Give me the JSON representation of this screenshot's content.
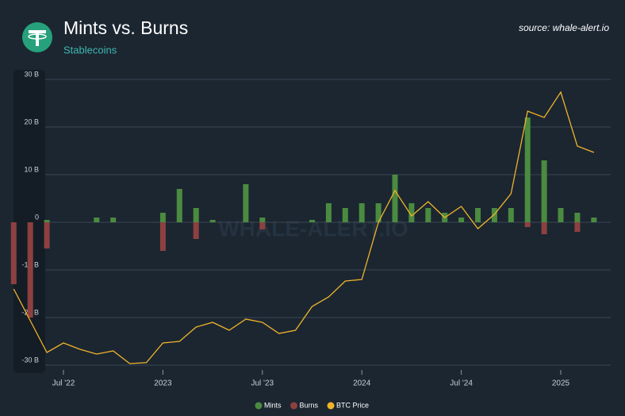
{
  "chart_data": {
    "type": "bar",
    "title": "Mints vs. Burns",
    "subtitle": "Stablecoins",
    "source": "source: whale-alert.io",
    "watermark": "WHALE-ALERT.IO",
    "x": [
      "2022-04",
      "2022-05",
      "2022-06",
      "2022-07",
      "2022-08",
      "2022-09",
      "2022-10",
      "2022-11",
      "2022-12",
      "2023-01",
      "2023-02",
      "2023-03",
      "2023-04",
      "2023-05",
      "2023-06",
      "2023-07",
      "2023-08",
      "2023-09",
      "2023-10",
      "2023-11",
      "2023-12",
      "2024-01",
      "2024-02",
      "2024-03",
      "2024-04",
      "2024-05",
      "2024-06",
      "2024-07",
      "2024-08",
      "2024-09",
      "2024-10",
      "2024-11",
      "2024-12",
      "2025-01",
      "2025-02",
      "2025-03"
    ],
    "series": [
      {
        "name": "Mints",
        "type": "bar",
        "color": "#4b8b3f",
        "values": [
          0,
          0,
          0.5,
          0,
          0,
          1,
          1,
          0,
          0,
          2,
          7,
          3,
          0.5,
          0,
          8,
          1,
          0,
          0,
          0.5,
          4,
          3,
          4,
          4,
          10,
          4,
          3,
          2,
          1,
          3,
          3,
          3,
          22,
          13,
          3,
          2,
          1
        ]
      },
      {
        "name": "Burns",
        "type": "bar",
        "color": "#8e4040",
        "values": [
          -13,
          -20,
          -5.5,
          0,
          0,
          0,
          0,
          0,
          0,
          -6,
          0,
          -3.5,
          0,
          0,
          0,
          -1.5,
          0,
          0,
          0,
          0,
          0,
          0,
          0,
          0,
          0,
          0,
          0,
          0,
          0,
          0,
          0,
          -1,
          -2.5,
          0,
          -2,
          0
        ]
      },
      {
        "name": "BTC Price",
        "type": "line",
        "axis": "y2",
        "color": "#f0b429",
        "values": [
          40000,
          30000,
          20000,
          23000,
          21000,
          19500,
          20500,
          16500,
          16800,
          23000,
          23500,
          28000,
          29500,
          27000,
          30500,
          29500,
          26000,
          27000,
          34500,
          37500,
          42500,
          43000,
          61000,
          71000,
          63000,
          67500,
          62500,
          66000,
          59000,
          63500,
          70000,
          96000,
          94000,
          102000,
          85000,
          83000
        ]
      }
    ],
    "ylim": [
      -32,
      32
    ],
    "yticks": [
      {
        "value": 30,
        "label": "30 B"
      },
      {
        "value": 20,
        "label": "20 B"
      },
      {
        "value": 10,
        "label": "10 B"
      },
      0,
      {
        "value": -10,
        "label": "-10 B"
      },
      {
        "value": -20,
        "label": "-20 B"
      },
      {
        "value": -30,
        "label": "-30 B"
      }
    ],
    "y2lim": [
      13000,
      109000
    ],
    "xticks": [
      {
        "value": "2022-07",
        "label": "Jul '22"
      },
      {
        "value": "2023-01",
        "label": "2023"
      },
      {
        "value": "2023-07",
        "label": "Jul '23"
      },
      {
        "value": "2024-01",
        "label": "2024"
      },
      {
        "value": "2024-07",
        "label": "Jul '24"
      },
      {
        "value": "2025-01",
        "label": "2025"
      }
    ],
    "grid": true,
    "legend": "bottom"
  }
}
